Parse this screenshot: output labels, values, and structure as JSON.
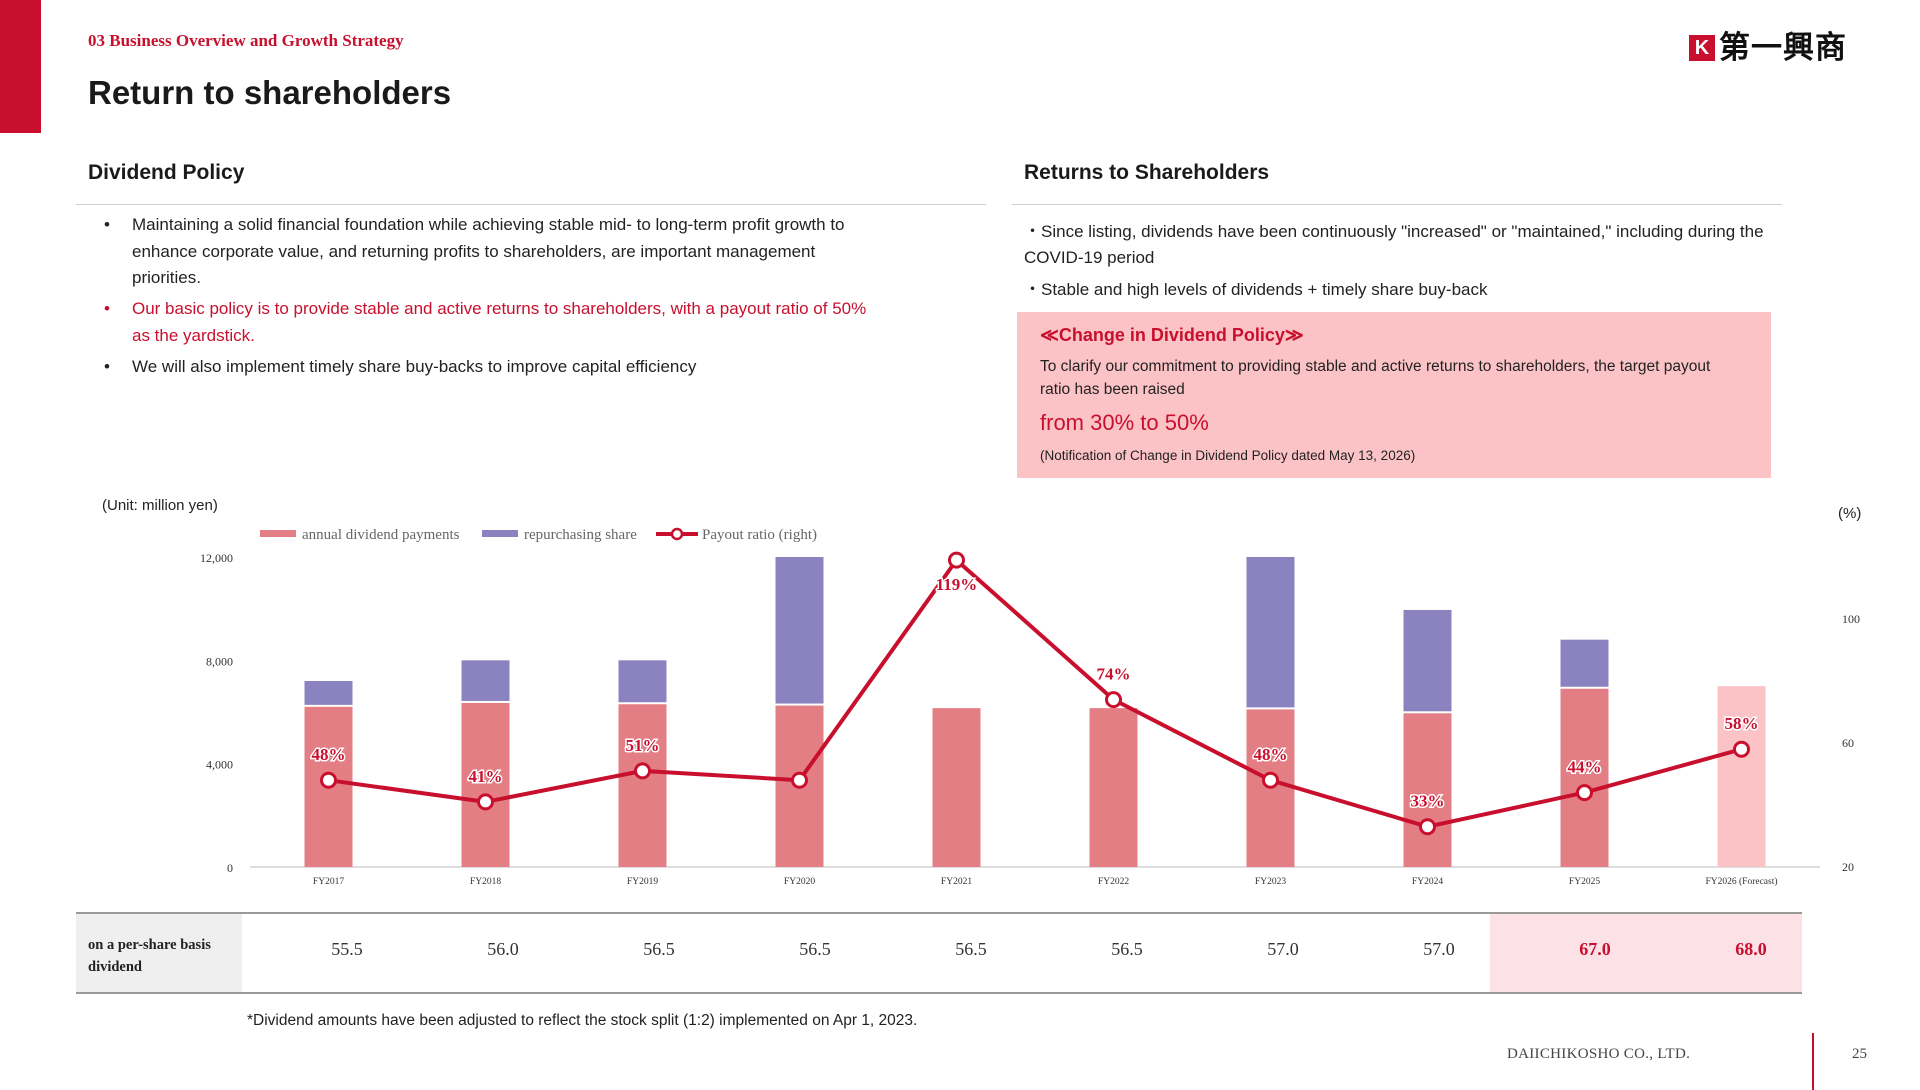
{
  "header": {
    "section": "03 Business Overview and Growth Strategy",
    "title": "Return to shareholders",
    "logo_mark": "K",
    "logo_text": "第一興商"
  },
  "dividend_policy": {
    "heading": "Dividend Policy",
    "bullet_char": "•",
    "bullets": [
      {
        "line1": "Maintaining a solid financial foundation while achieving stable mid- to long-term profit growth to",
        "line2": "enhance corporate value, and returning profits to shareholders, are important management",
        "line3": "priorities."
      },
      {
        "line1": "Our basic policy is to provide stable and active returns to shareholders, with a payout ratio of 50%",
        "line2": "as the yardstick."
      },
      {
        "line1": "We will also implement timely share buy-backs to improve capital efficiency"
      }
    ]
  },
  "returns": {
    "heading": "Returns to Shareholders",
    "line1": "・Since listing, dividends have been continuously \"increased\" or \"maintained,\" including during the",
    "line2": "COVID-19 period",
    "line3": "・Stable and high levels of dividends + timely share buy-back",
    "box": {
      "title": "≪Change in Dividend Policy≫",
      "body1": "To clarify our commitment to providing stable and active returns to shareholders, the target payout",
      "body2": "ratio has been raised",
      "big": "from 30% to 50%",
      "note": "(Notification of Change in Dividend Policy dated May 13, 2026)"
    }
  },
  "chart_data": {
    "type": "bar",
    "unit_label": "(Unit: million yen)",
    "right_unit_label": "(%)",
    "categories": [
      "FY2017",
      "FY2018",
      "FY2019",
      "FY2020",
      "FY2021",
      "FY2022",
      "FY2023",
      "FY2024",
      "FY2025",
      "FY2026 (Forecast)"
    ],
    "series": [
      {
        "name": "annual dividend payments",
        "type": "bar",
        "stacked": true,
        "color": "#e37e84",
        "forecast_color": "#fcc3c7",
        "values": [
          6200,
          6350,
          6300,
          6250,
          6150,
          6150,
          6100,
          5950,
          6900,
          7000
        ]
      },
      {
        "name": "repurchasing share",
        "type": "bar",
        "stacked": true,
        "color": "#8b83bf",
        "values": [
          1000,
          1650,
          1700,
          5750,
          0,
          0,
          5900,
          4000,
          1900,
          0
        ]
      },
      {
        "name": "Payout ratio (right)",
        "type": "line",
        "axis": "right",
        "color": "#c8102e",
        "values": [
          48,
          41,
          51,
          48,
          119,
          74,
          48,
          33,
          44,
          58
        ],
        "labels": [
          "48%",
          "41%",
          "51%",
          "",
          "119%",
          "74%",
          "48%",
          "33%",
          "44%",
          "58%"
        ]
      }
    ],
    "y_left": {
      "min": 0,
      "max": 12000,
      "ticks": [
        "0",
        "4,000",
        "8,000",
        "12,000"
      ]
    },
    "y_right": {
      "min": 20,
      "max": 120,
      "ticks": [
        "20",
        "60",
        "100"
      ]
    },
    "legend_placement": "top-left"
  },
  "dividend_table": {
    "label_line1": "on a per-share basis",
    "label_line2": "dividend",
    "values": [
      "55.5",
      "56.0",
      "56.5",
      "56.5",
      "56.5",
      "56.5",
      "57.0",
      "57.0",
      "67.0",
      "68.0"
    ]
  },
  "footnote": "*Dividend amounts have been adjusted to reflect the stock split (1:2) implemented on Apr 1, 2023.",
  "footer": {
    "company": "DAIICHIKOSHO CO., LTD.",
    "page": "25"
  },
  "colors": {
    "brand_red": "#c8102e",
    "dividend": "#e37e84",
    "buyback": "#8b83bf",
    "forecast": "#fcc3c7"
  }
}
